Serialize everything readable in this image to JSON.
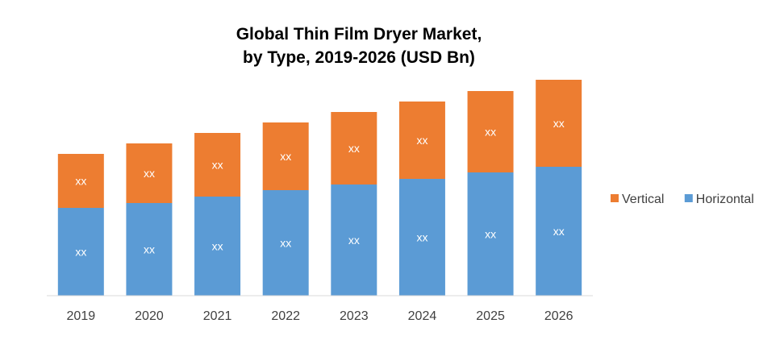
{
  "chart_data": {
    "type": "bar",
    "stacked": true,
    "title": "Global Thin Film Dryer Market,",
    "subtitle": "by Type, 2019-2026 (USD Bn)",
    "categories": [
      "2019",
      "2020",
      "2021",
      "2022",
      "2023",
      "2024",
      "2025",
      "2026"
    ],
    "series": [
      {
        "name": "Horizontal",
        "color": "#5B9BD5",
        "values": [
          109,
          115,
          123,
          131,
          138,
          145,
          153,
          160
        ],
        "labels": [
          "xx",
          "xx",
          "xx",
          "xx",
          "xx",
          "xx",
          "xx",
          "xx"
        ]
      },
      {
        "name": "Vertical",
        "color": "#ED7D31",
        "values": [
          67,
          74,
          79,
          84,
          90,
          96,
          101,
          108
        ],
        "labels": [
          "xx",
          "xx",
          "xx",
          "xx",
          "xx",
          "xx",
          "xx",
          "xx"
        ]
      }
    ],
    "ylim": [
      0,
      268
    ],
    "grid": false,
    "legend": "right",
    "legend_order": [
      "Vertical",
      "Horizontal"
    ]
  }
}
